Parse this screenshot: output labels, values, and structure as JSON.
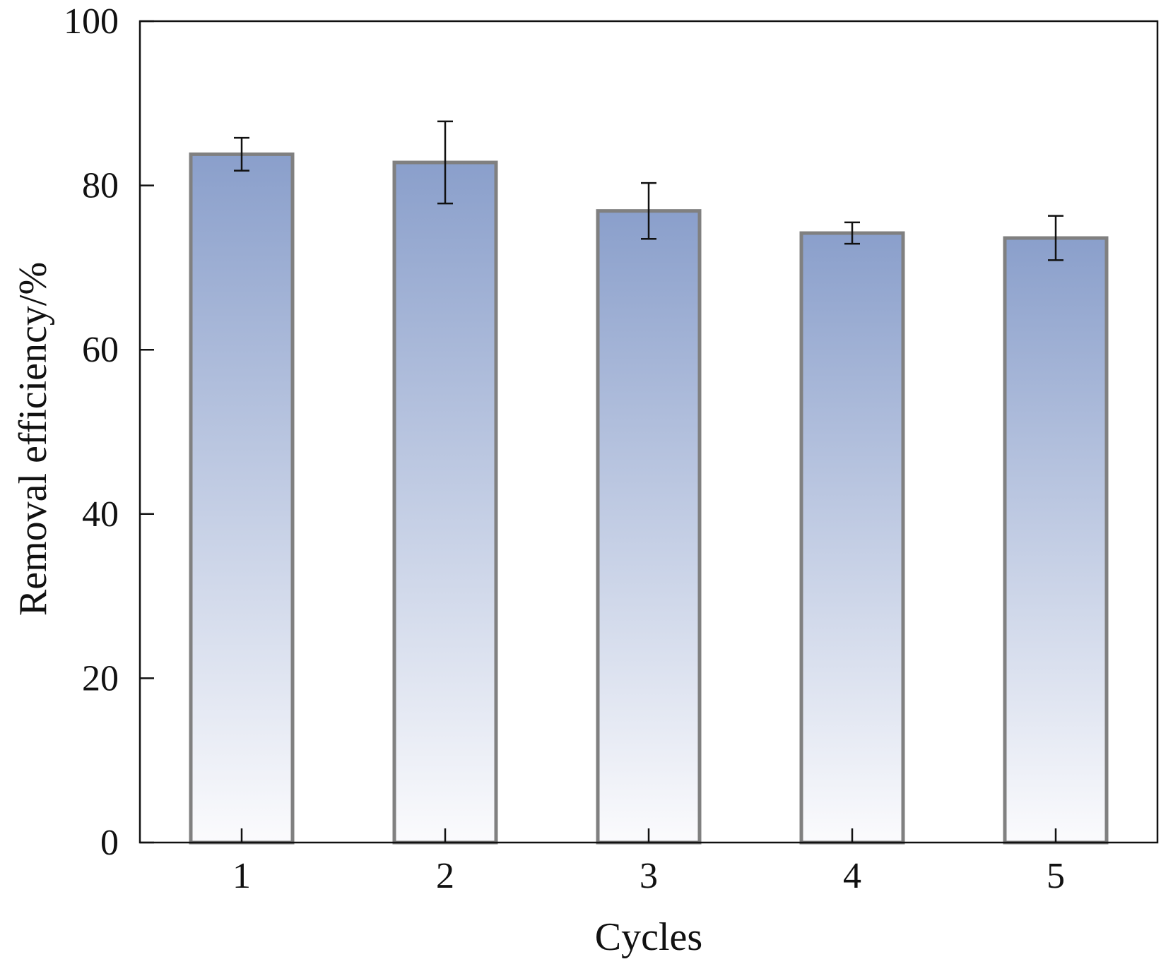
{
  "chart_data": {
    "type": "bar",
    "title": "",
    "xlabel": "Cycles",
    "ylabel": "Removal efficiency/%",
    "categories": [
      "1",
      "2",
      "3",
      "4",
      "5"
    ],
    "values": [
      83.8,
      82.8,
      76.9,
      74.2,
      73.6
    ],
    "error": [
      2.0,
      5.0,
      3.4,
      1.3,
      2.7
    ],
    "ylim": [
      0,
      100
    ],
    "yticks": [
      "0",
      "20",
      "40",
      "60",
      "80",
      "100"
    ],
    "grid": false,
    "legend": "none",
    "colors": {
      "bar_top": "#8a9fcb",
      "bar_bottom": "#fbfbfd",
      "bar_edge": "#808080",
      "error_bar": "#111111",
      "axis": "#111111"
    }
  }
}
